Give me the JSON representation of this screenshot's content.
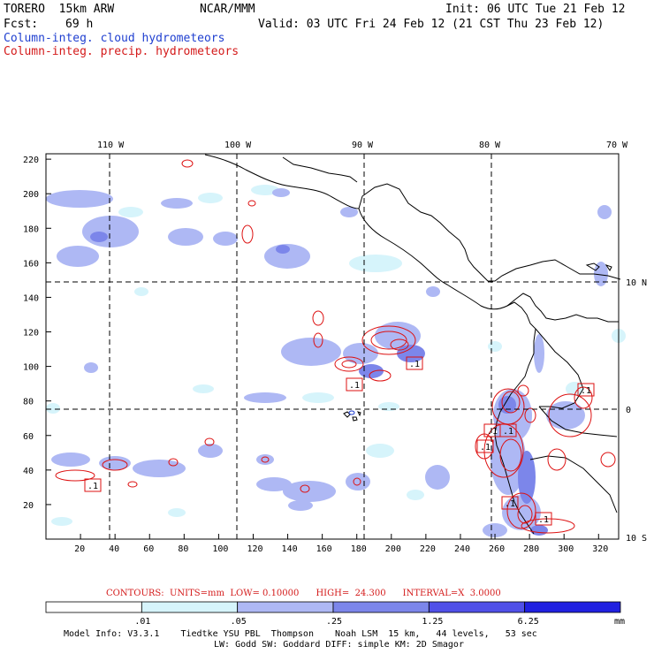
{
  "header": {
    "model": "TORERO  15km ARW",
    "center": "NCAR/MMM",
    "init": "Init: 06 UTC Tue 21 Feb 12",
    "fcst_label": "Fcst:",
    "fcst_value": "69 h",
    "valid": "Valid: 03 UTC Fri 24 Feb 12 (21 CST Thu 23 Feb 12)",
    "line_blue": "Column-integ. cloud hydrometeors",
    "line_red": "Column-integ. precip. hydrometeors"
  },
  "map": {
    "top_lon_labels": [
      "110 W",
      "100 W",
      "90 W",
      "80 W",
      "70 W"
    ],
    "right_lat_labels": [
      "10 N",
      "0",
      "10 S"
    ],
    "x_ticks": [
      "20",
      "40",
      "60",
      "80",
      "100",
      "120",
      "140",
      "160",
      "180",
      "200",
      "220",
      "240",
      "260",
      "280",
      "300",
      "320"
    ],
    "y_ticks": [
      "20",
      "40",
      "60",
      "80",
      "100",
      "120",
      "140",
      "160",
      "180",
      "200",
      "220"
    ],
    "contour_labels": [
      ".1",
      ".1",
      ".1",
      ".1",
      ".1",
      ".1",
      ".1",
      ".1",
      ".1"
    ],
    "colors": {
      "cloud_light": "#d6f4fb",
      "cloud_mid": "#aeb8f4",
      "cloud_dark": "#7c86ea",
      "cloud_deep": "#3b3fe0",
      "contour": "#dd1111",
      "coast": "#000000"
    }
  },
  "footer": {
    "contours_line": "CONTOURS:  UNITS=mm  LOW= 0.10000      HIGH=  24.300      INTERVAL=X  3.0000",
    "colorbar_labels": [
      ".01",
      ".05",
      ".25",
      "1.25",
      "6.25"
    ],
    "colorbar_colors": [
      "#ffffff",
      "#d6f4fb",
      "#aeb8f4",
      "#7c86ea",
      "#5050e8",
      "#2020e0"
    ],
    "unit": "mm",
    "model_info_1": "Model Info: V3.3.1    Tiedtke YSU PBL  Thompson    Noah LSM  15 km,   44 levels,   53 sec",
    "model_info_2": "LW: Godd SW: Goddard DIFF: simple KM: 2D Smagor"
  }
}
